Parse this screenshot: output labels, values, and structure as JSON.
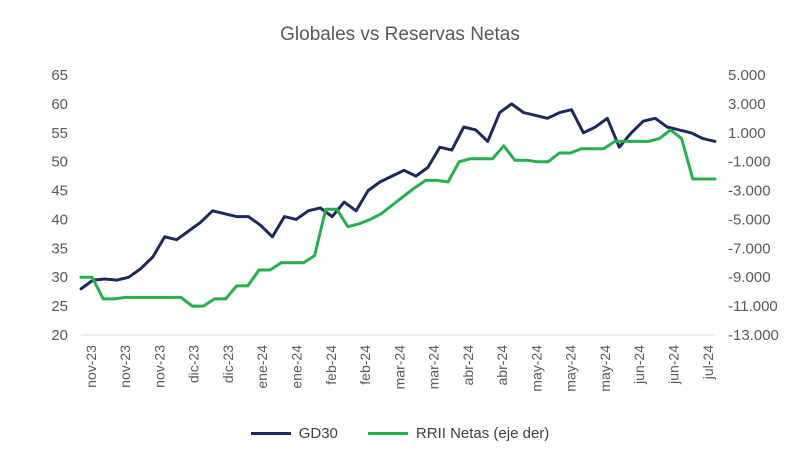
{
  "chart_data": {
    "type": "line",
    "title": "Globales vs Reservas Netas",
    "x_tick_labels": [
      "nov-23",
      "nov-23",
      "nov-23",
      "dic-23",
      "dic-23",
      "ene-24",
      "ene-24",
      "feb-24",
      "feb-24",
      "mar-24",
      "mar-24",
      "abr-24",
      "abr-24",
      "may-24",
      "may-24",
      "may-24",
      "jun-24",
      "jun-24",
      "jul-24"
    ],
    "y_left": {
      "ylim": [
        20,
        65
      ],
      "ticks": [
        "20",
        "25",
        "30",
        "35",
        "40",
        "45",
        "50",
        "55",
        "60",
        "65"
      ]
    },
    "y_right": {
      "ylim": [
        -13000,
        5000
      ],
      "ticks": [
        "-13.000",
        "-11.000",
        "-9.000",
        "-7.000",
        "-5.000",
        "-3.000",
        "-1.000",
        "1.000",
        "3.000",
        "5.000"
      ]
    },
    "series": [
      {
        "name": "GD30",
        "axis": "left",
        "color": "#1f2a5c",
        "values": [
          28.0,
          29.5,
          29.7,
          29.5,
          30.0,
          31.5,
          33.5,
          37.0,
          36.5,
          38.0,
          39.5,
          41.5,
          41.0,
          40.5,
          40.5,
          39.0,
          37.0,
          40.5,
          40.0,
          41.5,
          42.0,
          40.5,
          43.0,
          41.5,
          45.0,
          46.5,
          47.5,
          48.5,
          47.5,
          49.0,
          52.5,
          52.0,
          56.0,
          55.5,
          53.5,
          58.5,
          60.0,
          58.5,
          58.0,
          57.5,
          58.5,
          59.0,
          55.0,
          56.0,
          57.5,
          52.5,
          55.0,
          57.0,
          57.5,
          56.0,
          55.5,
          55.0,
          54.0,
          53.5
        ]
      },
      {
        "name": "RRII Netas (eje der)",
        "axis": "right",
        "color": "#27ae4f",
        "values": [
          -9000,
          -9000,
          -10500,
          -10500,
          -10400,
          -10400,
          -10400,
          -10400,
          -10400,
          -10400,
          -11000,
          -11000,
          -10500,
          -10500,
          -9600,
          -9600,
          -8500,
          -8500,
          -8000,
          -8000,
          -8000,
          -7500,
          -4300,
          -4300,
          -5500,
          -5300,
          -5000,
          -4600,
          -4000,
          -3400,
          -2800,
          -2300,
          -2300,
          -2400,
          -1000,
          -800,
          -800,
          -800,
          100,
          -900,
          -900,
          -1000,
          -1000,
          -400,
          -400,
          -100,
          -100,
          -100,
          400,
          400,
          400,
          400,
          600,
          1200,
          600,
          -2200,
          -2200,
          -2200
        ]
      }
    ],
    "legend": [
      "GD30",
      "RRII Netas (eje der)"
    ],
    "legend_position": "bottom",
    "grid": false
  }
}
